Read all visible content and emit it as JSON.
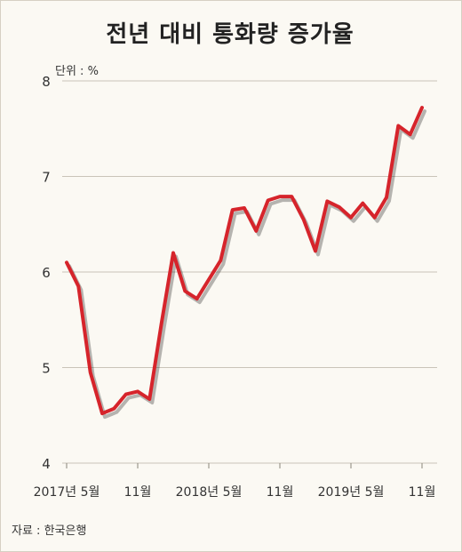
{
  "title": "전년 대비 통화량 증가율",
  "unit_label": "단위 : %",
  "source_label": "자료 : 한국은행",
  "chart_data": {
    "type": "line",
    "ylim": [
      4,
      8
    ],
    "yticks": [
      4,
      5,
      6,
      7,
      8
    ],
    "grid": true,
    "xticks": [
      {
        "label": "2017년 5월",
        "index": 0
      },
      {
        "label": "11월",
        "index": 6
      },
      {
        "label": "2018년 5월",
        "index": 12
      },
      {
        "label": "11월",
        "index": 18
      },
      {
        "label": "2019년 5월",
        "index": 24
      },
      {
        "label": "11월",
        "index": 30
      }
    ],
    "line_color": "#d6242b",
    "series": [
      {
        "values": [
          6.1,
          5.85,
          4.95,
          4.52,
          4.57,
          4.72,
          4.75,
          4.67,
          5.46,
          6.2,
          5.8,
          5.72,
          5.92,
          6.12,
          6.65,
          6.67,
          6.43,
          6.75,
          6.79,
          6.79,
          6.55,
          6.22,
          6.74,
          6.68,
          6.57,
          6.72,
          6.57,
          6.78,
          7.53,
          7.44,
          7.72
        ]
      }
    ]
  }
}
